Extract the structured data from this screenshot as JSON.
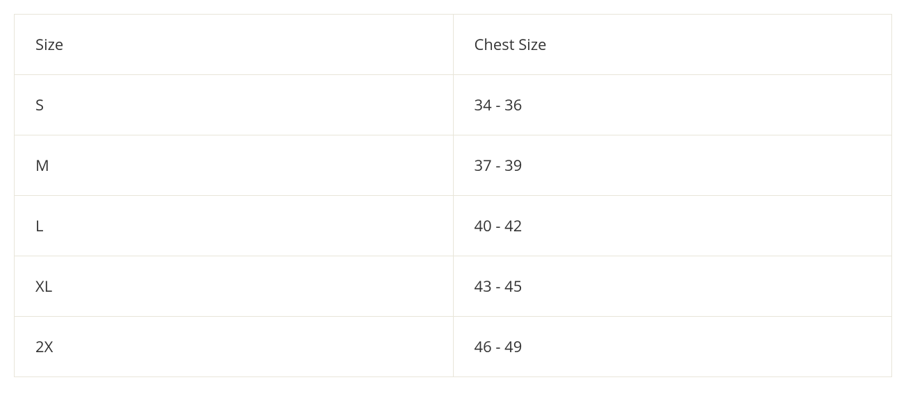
{
  "table": {
    "type": "table",
    "columns": [
      "Size",
      "Chest Size"
    ],
    "rows": [
      [
        "S",
        "34 - 36"
      ],
      [
        "M",
        "37 - 39"
      ],
      [
        "L",
        "40 - 42"
      ],
      [
        "XL",
        "43 - 45"
      ],
      [
        "2X",
        "46 - 49"
      ]
    ],
    "styling": {
      "border_color": "#e8e5d9",
      "background_color": "#ffffff",
      "text_color": "#333333",
      "font_size": 22,
      "font_weight": 400,
      "cell_padding_vertical": 28,
      "cell_padding_horizontal": 30,
      "column_widths": [
        "50%",
        "50%"
      ],
      "text_align": "left"
    }
  }
}
